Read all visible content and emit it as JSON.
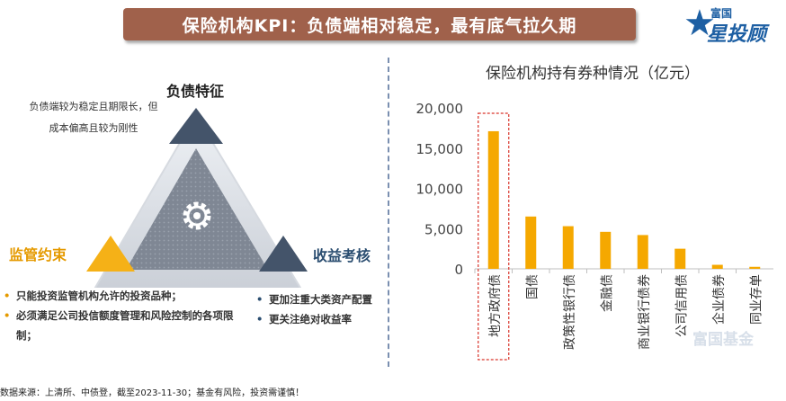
{
  "header": {
    "title": "保险机构KPI：负债端相对稳定，最有底气拉久期",
    "logo_top": "富国",
    "logo_main": "星投顾"
  },
  "triangle": {
    "top_label": "负债特征",
    "top_desc": "负债端较为稳定且期限长，但成本偏高且较为刚性",
    "left_label": "监管约束",
    "left_bullets": [
      "只能投资监管机构允许的投资品种；",
      "必须满足公司投信额度管理和风险控制的各项限制；"
    ],
    "right_label": "收益考核",
    "right_bullets": [
      "更加注重大类资产配置",
      "更关注绝对收益率"
    ],
    "colors": {
      "top": "#44546a",
      "left": "#f5b117",
      "right": "#44546a",
      "center": "#7f8794"
    },
    "icon": "gear-icon"
  },
  "chart_data": {
    "type": "bar",
    "title": "保险机构持有券种情况（亿元）",
    "categories": [
      "地方政府债",
      "国债",
      "政策性银行债",
      "金融债",
      "商业银行债券",
      "公司信用债",
      "企业债券",
      "同业存单"
    ],
    "values": [
      17100,
      6500,
      5300,
      4600,
      4200,
      2500,
      500,
      250
    ],
    "yticks": [
      "20,000",
      "15,000",
      "10,000",
      "5,000",
      "0"
    ],
    "ytick_values": [
      20000,
      15000,
      10000,
      5000,
      0
    ],
    "ylim": [
      0,
      20000
    ],
    "bar_color": "#f5a800",
    "highlight_index": 0,
    "highlight_color": "#d9342b",
    "grid": false
  },
  "watermark": "富国基金",
  "footer": {
    "source": "数据来源：上清所、中债登，截至2023-11-30；基金有风险，投资需谨慎！"
  }
}
